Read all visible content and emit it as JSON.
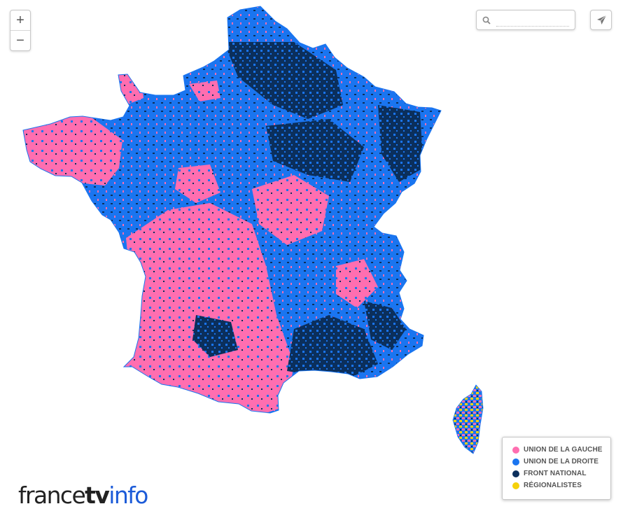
{
  "colors": {
    "union_de_la_gauche": "#ff6eb0",
    "union_de_la_droite": "#1a75f0",
    "front_national": "#0b2f5c",
    "regionalistes": "#f5d10a"
  },
  "zoom": {
    "in_label": "+",
    "out_label": "−"
  },
  "search": {
    "value": "",
    "placeholder": ""
  },
  "share": {
    "icon": "paper-plane-icon"
  },
  "legend": {
    "items": [
      {
        "label": "UNION DE LA GAUCHE",
        "color": "#ff6eb0"
      },
      {
        "label": "UNION DE LA DROITE",
        "color": "#1a75f0"
      },
      {
        "label": "FRONT NATIONAL",
        "color": "#0b2f5c"
      },
      {
        "label": "RÉGIONALISTES",
        "color": "#f5d10a"
      }
    ]
  },
  "logo": {
    "part1": "france",
    "part2": "tv",
    "part3": "info"
  }
}
